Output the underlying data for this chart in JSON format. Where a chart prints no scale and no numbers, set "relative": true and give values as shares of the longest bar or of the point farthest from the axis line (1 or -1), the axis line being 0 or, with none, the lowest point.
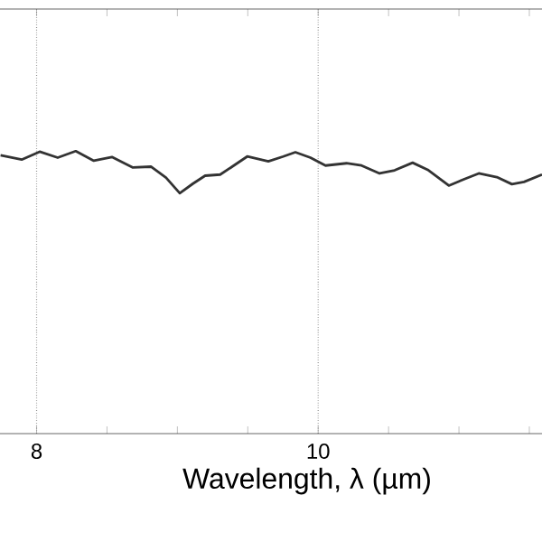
{
  "chart_data": {
    "type": "line",
    "xlabel": "Wavelength, λ (µm)",
    "relative": true,
    "xlim": [
      7.74,
      11.59
    ],
    "xticks": [
      8,
      {
        "value": 8.5,
        "label": null
      },
      {
        "value": 9,
        "label": null
      },
      {
        "value": 9.5,
        "label": null
      },
      10,
      {
        "value": 10.5,
        "label": null
      },
      {
        "value": 11,
        "label": null
      },
      {
        "value": 11.5,
        "label": null
      }
    ],
    "grid": true,
    "line_style": "solid",
    "series": [
      {
        "color": "#333333",
        "x": [
          7.744,
          7.894,
          8.022,
          8.15,
          8.278,
          8.406,
          8.535,
          8.684,
          8.812,
          8.919,
          9.017,
          9.111,
          9.197,
          9.304,
          9.389,
          9.496,
          9.646,
          9.752,
          9.838,
          9.945,
          10.052,
          10.201,
          10.308,
          10.436,
          10.543,
          10.671,
          10.778,
          10.928,
          11.035,
          11.141,
          11.269,
          11.376,
          11.462,
          11.59
        ],
        "values": [
          0.985,
          0.97,
          0.998,
          0.977,
          1.0,
          0.966,
          0.979,
          0.942,
          0.945,
          0.906,
          0.851,
          0.885,
          0.913,
          0.917,
          0.945,
          0.981,
          0.964,
          0.981,
          0.996,
          0.977,
          0.949,
          0.957,
          0.949,
          0.921,
          0.932,
          0.959,
          0.934,
          0.878,
          0.9,
          0.921,
          0.908,
          0.883,
          0.891,
          0.917
        ]
      }
    ]
  }
}
